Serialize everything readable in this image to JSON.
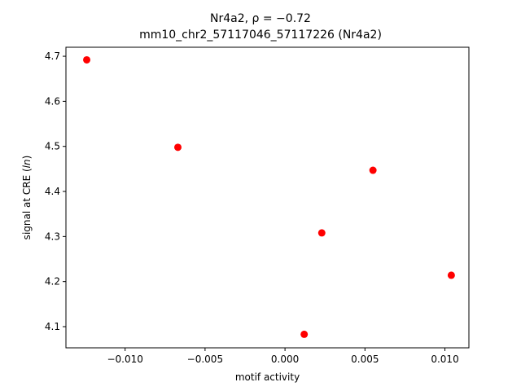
{
  "chart_data": {
    "type": "scatter",
    "title_lines": [
      "Nr4a2, ρ = −0.72",
      "mm10_chr2_57117046_57117226 (Nr4a2)"
    ],
    "xlabel": "motif activity",
    "ylabel": "signal at CRE (ln)",
    "xlim": [
      -0.0137,
      0.0115
    ],
    "ylim": [
      4.053,
      4.72
    ],
    "xticks": [
      -0.01,
      -0.005,
      0.0,
      0.005,
      0.01
    ],
    "xtick_labels": [
      "−0.010",
      "−0.005",
      "0.000",
      "0.005",
      "0.010"
    ],
    "yticks": [
      4.1,
      4.2,
      4.3,
      4.4,
      4.5,
      4.6,
      4.7
    ],
    "ytick_labels": [
      "4.1",
      "4.2",
      "4.3",
      "4.4",
      "4.5",
      "4.6",
      "4.7"
    ],
    "grid": false,
    "points": [
      {
        "x": -0.0124,
        "y": 4.692
      },
      {
        "x": -0.0067,
        "y": 4.498
      },
      {
        "x": 0.0012,
        "y": 4.083
      },
      {
        "x": 0.0023,
        "y": 4.308
      },
      {
        "x": 0.0055,
        "y": 4.447
      },
      {
        "x": 0.0104,
        "y": 4.214
      }
    ],
    "marker_color": "#ff0000"
  }
}
